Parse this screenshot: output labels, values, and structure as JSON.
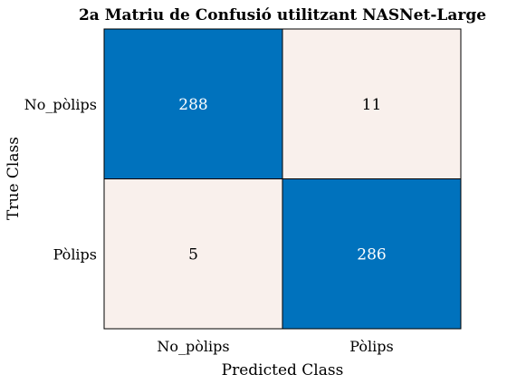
{
  "chart_data": {
    "type": "heatmap",
    "title": "2a Matriu de Confusió utilitzant NASNet-Large",
    "xlabel": "Predicted Class",
    "ylabel": "True Class",
    "row_labels": [
      "No_pòlips",
      "Pòlips"
    ],
    "col_labels": [
      "No_pòlips",
      "Pòlips"
    ],
    "values": [
      [
        288,
        11
      ],
      [
        5,
        286
      ]
    ],
    "colors": {
      "diagonal_fill": "#0072bd",
      "off_diagonal_fill": "#f9f0ec",
      "diagonal_text": "#ffffff",
      "off_diagonal_text": "#000000",
      "border": "#000000"
    }
  }
}
